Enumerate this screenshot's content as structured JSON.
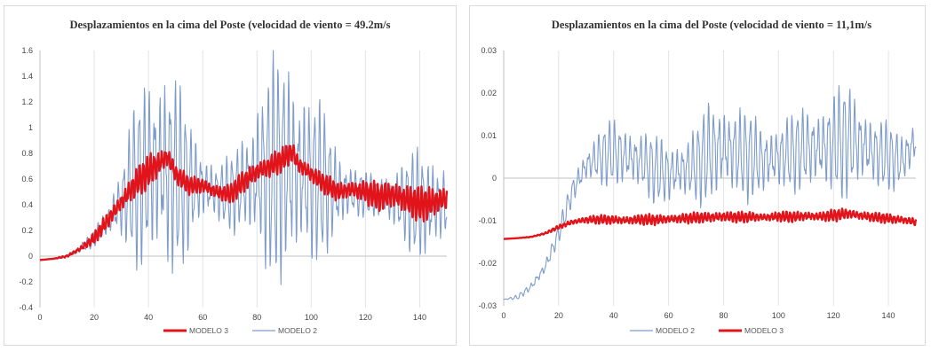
{
  "chart_data": [
    {
      "type": "line",
      "title": "Desplazamientos en la cima del Poste (velocidad de viento = 49.2m/s",
      "xlabel": "",
      "ylabel": "",
      "xlim": [
        0,
        150
      ],
      "ylim": [
        -0.4,
        1.6
      ],
      "x_ticks": [
        "0",
        "20",
        "40",
        "60",
        "80",
        "100",
        "120",
        "140"
      ],
      "y_ticks": [
        "1.6",
        "1.4",
        "1.2",
        "1",
        "0.8",
        "0.6",
        "0.4",
        "0.2",
        "0",
        "-0.2",
        "-0.4"
      ],
      "grid": "vertical",
      "legend_position": "bottom",
      "legend": [
        "MODELO 3",
        "MODELO 2"
      ],
      "series": [
        {
          "name": "MODELO 3",
          "color": "#e0141a",
          "x": [
            0,
            5,
            10,
            15,
            20,
            25,
            30,
            35,
            40,
            45,
            47,
            50,
            55,
            60,
            65,
            70,
            75,
            80,
            85,
            90,
            93,
            95,
            100,
            105,
            110,
            115,
            120,
            125,
            130,
            135,
            140,
            145,
            150
          ],
          "values": [
            -0.03,
            -0.02,
            0.0,
            0.06,
            0.14,
            0.28,
            0.42,
            0.56,
            0.66,
            0.74,
            0.78,
            0.64,
            0.55,
            0.55,
            0.5,
            0.48,
            0.58,
            0.66,
            0.7,
            0.76,
            0.82,
            0.72,
            0.64,
            0.56,
            0.5,
            0.52,
            0.5,
            0.46,
            0.48,
            0.44,
            0.4,
            0.42,
            0.45
          ],
          "amplitude": [
            0,
            0,
            0.01,
            0.02,
            0.04,
            0.06,
            0.08,
            0.1,
            0.12,
            0.1,
            0.1,
            0.08,
            0.06,
            0.06,
            0.06,
            0.07,
            0.08,
            0.09,
            0.09,
            0.08,
            0.08,
            0.08,
            0.07,
            0.07,
            0.07,
            0.08,
            0.08,
            0.1,
            0.12,
            0.12,
            0.12,
            0.12,
            0.12
          ]
        },
        {
          "name": "MODELO 2",
          "color": "#7e9ccb",
          "x": [
            0,
            5,
            10,
            15,
            20,
            25,
            30,
            35,
            40,
            45,
            47,
            50,
            55,
            60,
            65,
            70,
            75,
            80,
            85,
            90,
            93,
            95,
            100,
            105,
            110,
            115,
            120,
            125,
            130,
            135,
            140,
            145,
            150
          ],
          "values": [
            -0.03,
            -0.02,
            0.0,
            0.06,
            0.14,
            0.28,
            0.42,
            0.56,
            0.66,
            0.7,
            0.66,
            0.62,
            0.56,
            0.55,
            0.5,
            0.48,
            0.56,
            0.62,
            0.66,
            0.7,
            0.68,
            0.66,
            0.6,
            0.56,
            0.5,
            0.5,
            0.48,
            0.46,
            0.44,
            0.42,
            0.4,
            0.4,
            0.42
          ],
          "amplitude": [
            0,
            0,
            0.01,
            0.03,
            0.06,
            0.12,
            0.3,
            0.55,
            0.7,
            0.8,
            0.85,
            0.7,
            0.45,
            0.3,
            0.2,
            0.25,
            0.4,
            0.6,
            0.75,
            0.8,
            0.85,
            0.75,
            0.6,
            0.5,
            0.35,
            0.2,
            0.15,
            0.15,
            0.25,
            0.3,
            0.4,
            0.4,
            0.3
          ]
        }
      ]
    },
    {
      "type": "line",
      "title": "Desplazamientos en la cima del Poste (velocidad de viento = 11,1m/s",
      "xlabel": "",
      "ylabel": "",
      "xlim": [
        0,
        150
      ],
      "ylim": [
        -0.03,
        0.03
      ],
      "x_ticks": [
        "0",
        "20",
        "40",
        "60",
        "80",
        "100",
        "120",
        "140"
      ],
      "y_ticks": [
        "0.03",
        "0.02",
        "0.01",
        "0",
        "-0.01",
        "-0.02",
        "-0.03"
      ],
      "grid": "vertical",
      "legend_position": "bottom",
      "legend": [
        "MODELO 2",
        "MODELO 3"
      ],
      "series": [
        {
          "name": "MODELO 2",
          "color": "#7e9ccb",
          "x": [
            0,
            5,
            10,
            15,
            20,
            25,
            30,
            35,
            40,
            45,
            50,
            55,
            60,
            65,
            70,
            75,
            80,
            85,
            90,
            95,
            100,
            105,
            110,
            115,
            120,
            125,
            130,
            135,
            140,
            145,
            150
          ],
          "values": [
            -0.0285,
            -0.028,
            -0.0255,
            -0.021,
            -0.013,
            -0.003,
            0.003,
            0.005,
            0.006,
            0.005,
            0.004,
            0.002,
            0.001,
            0.002,
            0.003,
            0.006,
            0.007,
            0.006,
            0.005,
            0.004,
            0.005,
            0.006,
            0.007,
            0.007,
            0.008,
            0.009,
            0.008,
            0.006,
            0.005,
            0.004,
            0.009
          ],
          "amplitude": [
            0,
            0.0005,
            0.001,
            0.0015,
            0.002,
            0.003,
            0.004,
            0.006,
            0.007,
            0.007,
            0.007,
            0.007,
            0.007,
            0.007,
            0.008,
            0.011,
            0.011,
            0.01,
            0.009,
            0.008,
            0.008,
            0.008,
            0.009,
            0.01,
            0.011,
            0.012,
            0.01,
            0.008,
            0.007,
            0.006,
            0.006
          ]
        },
        {
          "name": "MODELO 3",
          "color": "#e0141a",
          "x": [
            0,
            5,
            10,
            15,
            20,
            25,
            30,
            35,
            40,
            45,
            50,
            55,
            60,
            65,
            70,
            75,
            80,
            85,
            90,
            95,
            100,
            105,
            110,
            115,
            120,
            125,
            130,
            135,
            140,
            145,
            150
          ],
          "values": [
            -0.0143,
            -0.0141,
            -0.0138,
            -0.013,
            -0.0115,
            -0.0103,
            -0.0098,
            -0.0097,
            -0.0098,
            -0.0099,
            -0.0097,
            -0.0098,
            -0.0096,
            -0.0095,
            -0.0093,
            -0.0092,
            -0.009,
            -0.0092,
            -0.0091,
            -0.0092,
            -0.009,
            -0.0091,
            -0.0089,
            -0.009,
            -0.0088,
            -0.0083,
            -0.0088,
            -0.0092,
            -0.0095,
            -0.0098,
            -0.0103
          ],
          "amplitude": [
            0,
            0,
            0.0001,
            0.0002,
            0.0004,
            0.0006,
            0.0008,
            0.0009,
            0.001,
            0.001,
            0.0011,
            0.0011,
            0.0011,
            0.0011,
            0.0011,
            0.0012,
            0.0013,
            0.0011,
            0.0011,
            0.001,
            0.0011,
            0.0011,
            0.0011,
            0.0011,
            0.0012,
            0.0012,
            0.0011,
            0.001,
            0.001,
            0.001,
            0.001
          ]
        }
      ]
    }
  ]
}
